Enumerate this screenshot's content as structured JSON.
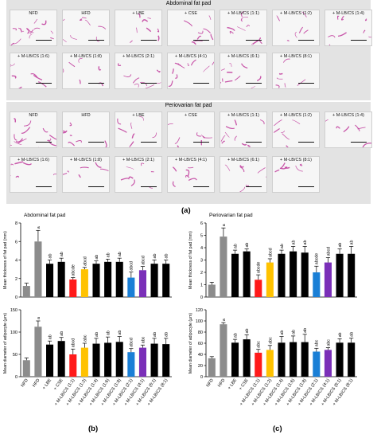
{
  "panel_a": {
    "abdominal_title": "Abdominal fat pad",
    "periovarian_title": "Periovarian fat pad",
    "abdominal_tiles": [
      "NFD",
      "HFD",
      "+ LBE",
      "+ CSE",
      "+ M-LB/CS (1:1)",
      "+ M-LB/CS (1:2)",
      "+ M-LB/CS (1:4)",
      "+ M-LB/CS (1:6)",
      "+ M-LB/CS (1:8)",
      "+ M-LB/CS (2:1)",
      "+ M-LB/CS (4:1)",
      "+ M-LB/CS (6:1)",
      "+ M-LB/CS (8:1)"
    ],
    "periovarian_tiles": [
      "NFD",
      "HFD",
      "+ LBE",
      "+ CSE",
      "+ M-LB/CS (1:1)",
      "+ M-LB/CS (1:2)",
      "+ M-LB/CS (1:4)",
      "+ M-LB/CS (1:6)",
      "+ M-LB/CS (1:8)",
      "+ M-LB/CS (2:1)",
      "+ M-LB/CS (4:1)",
      "+ M-LB/CS (6:1)",
      "+ M-LB/CS (8:1)"
    ],
    "stain_color": "#c0399b"
  },
  "labels": {
    "a": "(a)",
    "b": "(b)",
    "c": "(c)"
  },
  "colors": {
    "NFD": "#8c8c8c",
    "HFD": "#8c8c8c",
    "black": "#000000",
    "red": "#ff1a1a",
    "yellow": "#ffc200",
    "blue": "#1a7fd6",
    "purple": "#7a2fb8"
  },
  "chart_data": [
    {
      "type": "bar",
      "title": "Abdominal fat pad",
      "ylabel": "Mean thickness of fat pad (mm)",
      "ylim": [
        0,
        8
      ],
      "yticks": [
        0,
        2,
        4,
        6,
        8
      ],
      "categories": [
        "NFD",
        "HFD",
        "+ LBE",
        "+ CSE",
        "+ M-LB/CS (1:1)",
        "+ M-LB/CS (1:2)",
        "+ M-LB/CS (1:4)",
        "+ M-LB/CS (1:6)",
        "+ M-LB/CS (1:8)",
        "+ M-LB/CS (2:1)",
        "+ M-LB/CS (4:1)",
        "+ M-LB/CS (6:1)",
        "+ M-LB/CS (8:1)"
      ],
      "values": [
        1.2,
        6.0,
        3.6,
        3.8,
        1.9,
        3.0,
        3.6,
        3.8,
        3.8,
        2.1,
        2.9,
        3.6,
        3.6
      ],
      "errors": [
        0.3,
        1.2,
        0.4,
        0.4,
        0.2,
        0.2,
        0.3,
        0.3,
        0.4,
        0.6,
        0.4,
        0.4,
        0.4
      ],
      "sig": [
        "",
        "a",
        "ab",
        "ab",
        "abcde",
        "abcd",
        "ab",
        "ab",
        "ab",
        "abcd",
        "abcd",
        "ab",
        "ab"
      ],
      "bar_colors": [
        "#8c8c8c",
        "#8c8c8c",
        "#000000",
        "#000000",
        "#ff1a1a",
        "#ffc200",
        "#000000",
        "#000000",
        "#000000",
        "#1a7fd6",
        "#7a2fb8",
        "#000000",
        "#000000"
      ]
    },
    {
      "type": "bar",
      "ylabel": "Mean diameter of adipocyte (μm)",
      "ylim": [
        0,
        150
      ],
      "yticks": [
        0,
        50,
        100,
        150
      ],
      "categories": [
        "NFD",
        "HFD",
        "+ LBE",
        "+ CSE",
        "+ M-LB/CS (1:1)",
        "+ M-LB/CS (1:2)",
        "+ M-LB/CS (1:4)",
        "+ M-LB/CS (1:6)",
        "+ M-LB/CS (1:8)",
        "+ M-LB/CS (2:1)",
        "+ M-LB/CS (4:1)",
        "+ M-LB/CS (6:1)",
        "+ M-LB/CS (8:1)"
      ],
      "values": [
        37,
        112,
        72,
        80,
        50,
        65,
        74,
        76,
        78,
        55,
        65,
        74,
        73
      ],
      "errors": [
        5,
        13,
        8,
        8,
        12,
        10,
        12,
        13,
        12,
        8,
        6,
        12,
        13
      ],
      "sig": [
        "",
        "a",
        "ab",
        "ab",
        "abcd",
        "abc",
        "ab",
        "ab",
        "ab",
        "abcd",
        "abc",
        "ab",
        "ab"
      ],
      "bar_colors": [
        "#8c8c8c",
        "#8c8c8c",
        "#000000",
        "#000000",
        "#ff1a1a",
        "#ffc200",
        "#000000",
        "#000000",
        "#000000",
        "#1a7fd6",
        "#7a2fb8",
        "#000000",
        "#000000"
      ]
    },
    {
      "type": "bar",
      "title": "Periovarian fat pad",
      "ylabel": "Mean thickness of fat pad (mm)",
      "ylim": [
        0,
        6
      ],
      "yticks": [
        0,
        1,
        2,
        3,
        4,
        5,
        6
      ],
      "categories": [
        "NFD",
        "HFD",
        "+ LBE",
        "+ CSE",
        "+ M-LB/CS (1:1)",
        "+ M-LB/CS (1:2)",
        "+ M-LB/CS (1:4)",
        "+ M-LB/CS (1:6)",
        "+ M-LB/CS (1:8)",
        "+ M-LB/CS (2:1)",
        "+ M-LB/CS (4:1)",
        "+ M-LB/CS (6:1)",
        "+ M-LB/CS (8:1)"
      ],
      "values": [
        1.0,
        4.9,
        3.5,
        3.7,
        1.4,
        2.8,
        3.5,
        3.7,
        3.6,
        2.0,
        2.8,
        3.5,
        3.5
      ],
      "errors": [
        0.2,
        0.7,
        0.3,
        0.2,
        0.4,
        0.3,
        0.3,
        0.4,
        0.5,
        0.5,
        0.4,
        0.4,
        0.6
      ],
      "sig": [
        "",
        "a",
        "ab",
        "ab",
        "abcde",
        "abcd",
        "ab",
        "ab",
        "ab",
        "abcde",
        "abcd",
        "ab",
        "ab"
      ],
      "bar_colors": [
        "#8c8c8c",
        "#8c8c8c",
        "#000000",
        "#000000",
        "#ff1a1a",
        "#ffc200",
        "#000000",
        "#000000",
        "#000000",
        "#1a7fd6",
        "#7a2fb8",
        "#000000",
        "#000000"
      ]
    },
    {
      "type": "bar",
      "ylabel": "Mean diameter of adipocyte (μm)",
      "ylim": [
        0,
        120
      ],
      "yticks": [
        0,
        20,
        40,
        60,
        80,
        100,
        120
      ],
      "categories": [
        "NFD",
        "HFD",
        "+ LBE",
        "+ CSE",
        "+ M-LB/CS (1:1)",
        "+ M-LB/CS (1:2)",
        "+ M-LB/CS (1:4)",
        "+ M-LB/CS (1:6)",
        "+ M-LB/CS (1:8)",
        "+ M-LB/CS (2:1)",
        "+ M-LB/CS (4:1)",
        "+ M-LB/CS (6:1)",
        "+ M-LB/CS (8:1)"
      ],
      "values": [
        33,
        94,
        61,
        67,
        43,
        48,
        61,
        62,
        62,
        45,
        48,
        61,
        61
      ],
      "errors": [
        3,
        3,
        6,
        8,
        6,
        8,
        11,
        11,
        14,
        6,
        4,
        7,
        8
      ],
      "sig": [
        "",
        "a",
        "ab",
        "ab",
        "abc",
        "abc",
        "ab",
        "ab",
        "ab",
        "abc",
        "abc",
        "ab",
        "ab"
      ],
      "bar_colors": [
        "#8c8c8c",
        "#8c8c8c",
        "#000000",
        "#000000",
        "#ff1a1a",
        "#ffc200",
        "#000000",
        "#000000",
        "#000000",
        "#1a7fd6",
        "#7a2fb8",
        "#000000",
        "#000000"
      ]
    }
  ]
}
